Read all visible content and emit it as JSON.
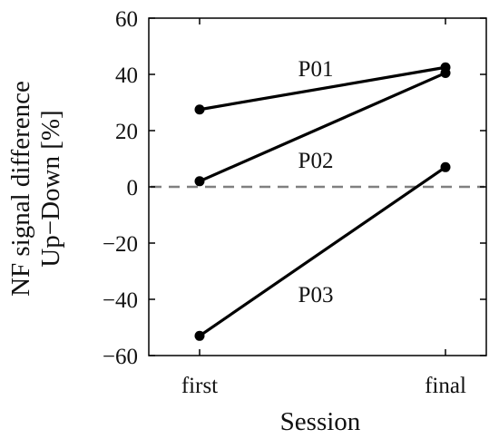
{
  "chart_data": {
    "type": "line",
    "categories": [
      "first",
      "final"
    ],
    "xlabel": "Session",
    "ylabel_lines": [
      "NF signal difference",
      "Up−Down [%]"
    ],
    "ylim": [
      -60,
      60
    ],
    "yticks": [
      60,
      40,
      20,
      0,
      -20,
      -40,
      -60
    ],
    "ytick_labels": [
      "60",
      "40",
      "20",
      "0",
      "−20",
      "−40",
      "−60"
    ],
    "reference_line": {
      "y": 0,
      "style": "dashed",
      "color": "#808080"
    },
    "grid": false,
    "series": [
      {
        "name": "P01",
        "values": [
          27.5,
          42.5
        ]
      },
      {
        "name": "P02",
        "values": [
          2,
          40.5
        ]
      },
      {
        "name": "P03",
        "values": [
          -53,
          7
        ]
      }
    ],
    "line_color": "#000000"
  }
}
